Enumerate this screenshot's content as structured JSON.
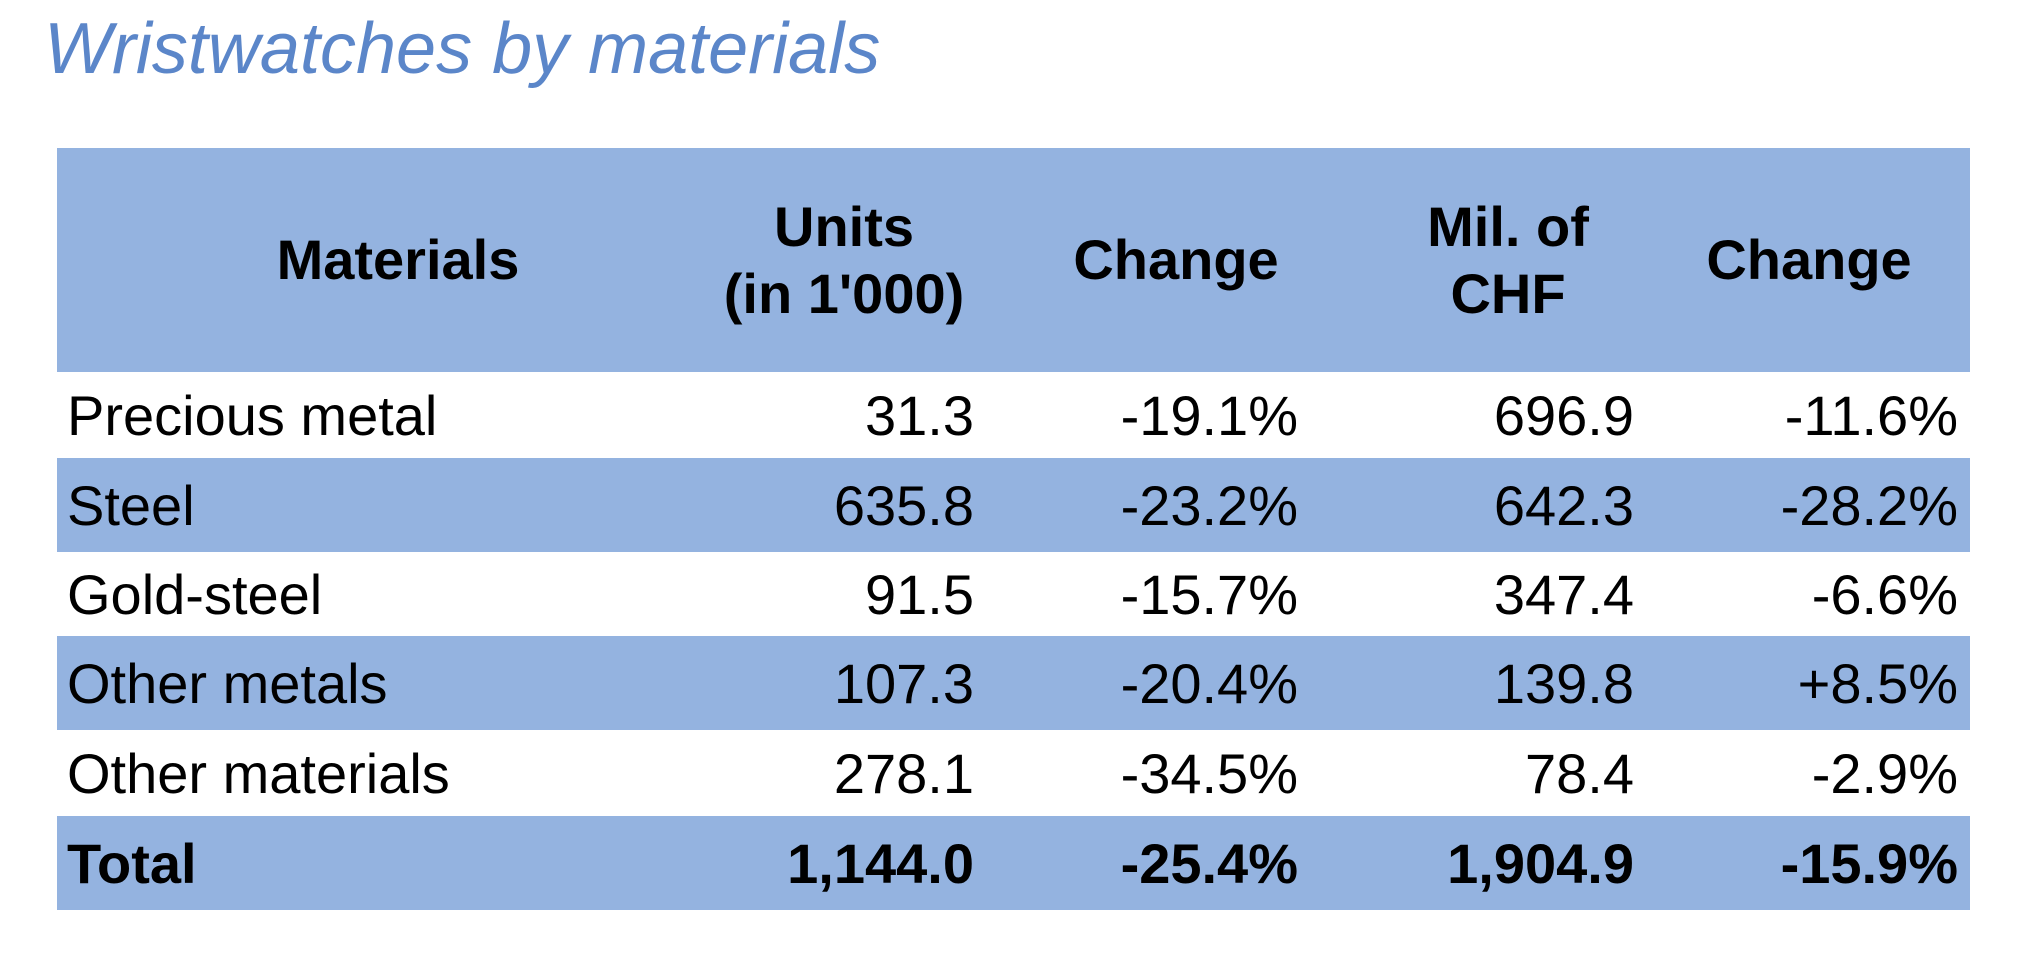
{
  "title": "Wristwatches by materials",
  "chart_data": {
    "type": "table",
    "title": "Wristwatches by materials",
    "columns": [
      {
        "line1": "Materials",
        "line2": ""
      },
      {
        "line1": "Units",
        "line2": "(in 1'000)"
      },
      {
        "line1": "Change",
        "line2": ""
      },
      {
        "line1": "Mil. of",
        "line2": "CHF"
      },
      {
        "line1": "Change",
        "line2": ""
      }
    ],
    "rows": [
      {
        "material": "Precious metal",
        "units": "31.3",
        "units_change": "-19.1%",
        "chf": "696.9",
        "chf_change": "-11.6%"
      },
      {
        "material": "Steel",
        "units": "635.8",
        "units_change": "-23.2%",
        "chf": "642.3",
        "chf_change": "-28.2%"
      },
      {
        "material": "Gold-steel",
        "units": "91.5",
        "units_change": "-15.7%",
        "chf": "347.4",
        "chf_change": "-6.6%"
      },
      {
        "material": "Other metals",
        "units": "107.3",
        "units_change": "-20.4%",
        "chf": "139.8",
        "chf_change": "+8.5%"
      },
      {
        "material": "Other materials",
        "units": "278.1",
        "units_change": "-34.5%",
        "chf": "78.4",
        "chf_change": "-2.9%"
      },
      {
        "material": "Total",
        "units": "1,144.0",
        "units_change": "-25.4%",
        "chf": "1,904.9",
        "chf_change": "-15.9%"
      }
    ]
  },
  "colors": {
    "title": "#5b86c9",
    "band": "#94b3e0"
  }
}
